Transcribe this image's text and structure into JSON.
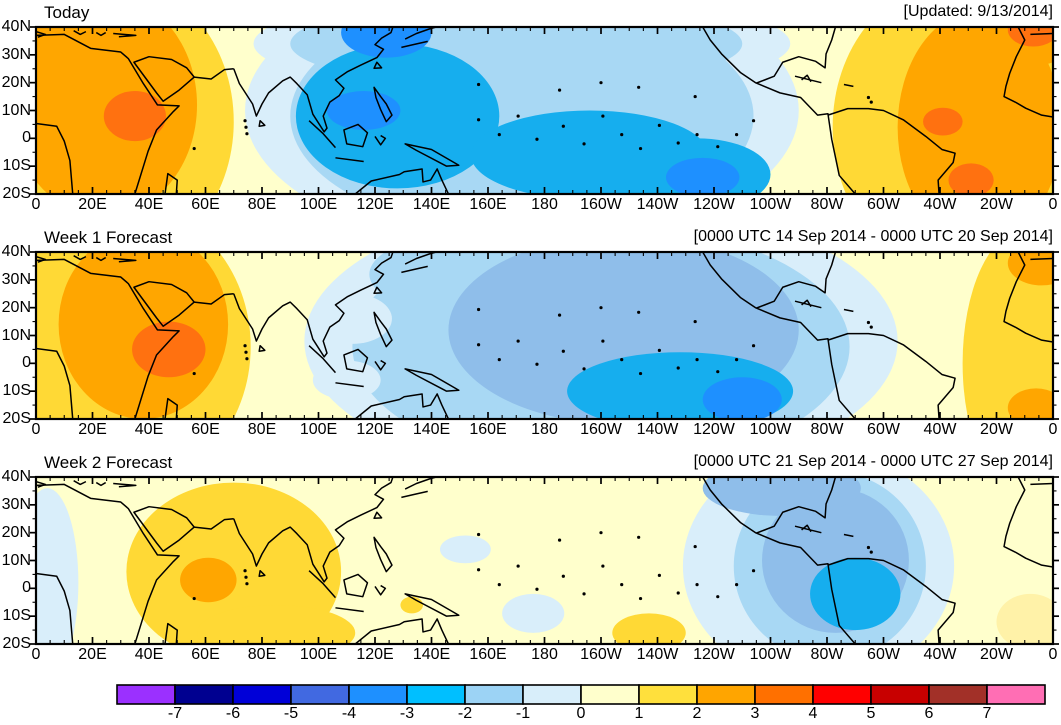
{
  "page": {
    "background": "#FFFFFF"
  },
  "panels": [
    {
      "title": "Today",
      "date_label": "[Updated: 9/13/2014]"
    },
    {
      "title": "Week 1 Forecast",
      "date_label": "[0000 UTC 14 Sep 2014 - 0000 UTC 20 Sep 2014]"
    },
    {
      "title": "Week 2 Forecast",
      "date_label": "[0000 UTC 21 Sep 2014 - 0000 UTC 27 Sep 2014]"
    }
  ],
  "axes": {
    "x_tick_labels": [
      "0",
      "20E",
      "40E",
      "60E",
      "80E",
      "100E",
      "120E",
      "140E",
      "160E",
      "180",
      "160W",
      "140W",
      "120W",
      "100W",
      "80W",
      "60W",
      "40W",
      "20W",
      "0"
    ],
    "x_tick_lons": [
      0,
      20,
      40,
      60,
      80,
      100,
      120,
      140,
      160,
      180,
      200,
      220,
      240,
      260,
      280,
      300,
      320,
      340,
      360
    ],
    "y_tick_labels": [
      "40N",
      "30N",
      "20N",
      "10N",
      "0",
      "10S",
      "20S"
    ],
    "y_tick_lats": [
      40,
      30,
      20,
      10,
      0,
      -10,
      -20
    ],
    "lon_range": [
      0,
      360
    ],
    "lat_range": [
      -20,
      40
    ],
    "minor_tick_deg": 5
  },
  "colorbar": {
    "labels": [
      "-7",
      "-6",
      "-5",
      "-4",
      "-3",
      "-2",
      "-1",
      "0",
      "1",
      "2",
      "3",
      "4",
      "5",
      "6",
      "7"
    ],
    "colors": [
      "#9B30FF",
      "#000090",
      "#0000D8",
      "#4169E1",
      "#1E90FF",
      "#00BFFF",
      "#9CD3F5",
      "#D8EEFA",
      "#FFFFCC",
      "#FFE03C",
      "#FFA500",
      "#FF7000",
      "#FF0000",
      "#C80000",
      "#A23028",
      "#FF6EB4"
    ]
  },
  "chart_data": {
    "type": "heatmap",
    "subtype": "filled-contour anomaly world maps, 3 stacked panels",
    "lon_domain": [
      0,
      360
    ],
    "lat_domain": [
      -20,
      40
    ],
    "contour_levels": [
      -7,
      -6,
      -5,
      -4,
      -3,
      -2,
      -1,
      0,
      1,
      2,
      3,
      4,
      5,
      6,
      7
    ],
    "base_color": "#FFFFCC",
    "palette": {
      "-4": "#1E90FF",
      "-3": "#16AEEE",
      "-2": "#A8D8F4",
      "-2m": "#8FBEEA",
      "-1": "#D9EEFA",
      "1": "#FFD935",
      "2": "#FFA600",
      "3": "#FF7110",
      "py": "#FFF2A8"
    },
    "palette_note": "keys are lower bounds of anomaly bands; -2m is the muted mid-blue shade, py the pale-yellow shade seen on the maps",
    "panels": [
      {
        "title": "Today",
        "period": "Updated 9/13/2014",
        "regions": [
          {
            "level": "-1",
            "lon": 172,
            "lat": 10,
            "rlon": 98,
            "rlat": 50
          },
          {
            "level": "-1",
            "lon": 172,
            "lat": 34,
            "rlon": 95,
            "rlat": 18
          },
          {
            "level": "-2",
            "lon": 172,
            "lat": 8,
            "rlon": 82,
            "rlat": 42
          },
          {
            "level": "-2",
            "lon": 170,
            "lat": 34,
            "rlon": 80,
            "rlat": 16
          },
          {
            "level": "-3",
            "lon": 128,
            "lat": 8,
            "rlon": 36,
            "rlat": 26
          },
          {
            "level": "-3",
            "lon": 196,
            "lat": -6,
            "rlon": 42,
            "rlat": 16
          },
          {
            "level": "-3",
            "lon": 234,
            "lat": -13,
            "rlon": 26,
            "rlat": 13
          },
          {
            "level": "-4",
            "lon": 116,
            "lat": 10,
            "rlon": 13,
            "rlat": 7
          },
          {
            "level": "-4",
            "lon": 124,
            "lat": 38,
            "rlon": 16,
            "rlat": 9
          },
          {
            "level": "-4",
            "lon": 236,
            "lat": -14,
            "rlon": 13,
            "rlat": 7
          },
          {
            "level": "1",
            "lon": 26,
            "lat": 6,
            "rlon": 44,
            "rlat": 52
          },
          {
            "level": "2",
            "lon": 24,
            "lat": 12,
            "rlon": 33,
            "rlat": 40
          },
          {
            "level": "3",
            "lon": 35,
            "lat": 8,
            "rlon": 11,
            "rlat": 9
          },
          {
            "level": "1",
            "lon": 324,
            "lat": 4,
            "rlon": 42,
            "rlat": 52
          },
          {
            "level": "2",
            "lon": 334,
            "lat": 4,
            "rlon": 29,
            "rlat": 42
          },
          {
            "level": "2",
            "lon": 352,
            "lat": 36,
            "rlon": 16,
            "rlat": 10
          },
          {
            "level": "3",
            "lon": 353,
            "lat": 39,
            "rlon": 9,
            "rlat": 6
          },
          {
            "level": "3",
            "lon": 321,
            "lat": 6,
            "rlon": 7,
            "rlat": 5
          },
          {
            "level": "3",
            "lon": 331,
            "lat": -15,
            "rlon": 8,
            "rlat": 6
          }
        ]
      },
      {
        "title": "Week 1 Forecast",
        "period": "0000 UTC 14 Sep 2014 - 0000 UTC 20 Sep 2014",
        "regions": [
          {
            "level": "-1",
            "lon": 200,
            "lat": 8,
            "rlon": 105,
            "rlat": 50
          },
          {
            "level": "-2",
            "lon": 200,
            "lat": 6,
            "rlon": 88,
            "rlat": 44
          },
          {
            "level": "-2",
            "lon": 160,
            "lat": 32,
            "rlon": 42,
            "rlat": 16
          },
          {
            "level": "-2m",
            "lon": 208,
            "lat": 12,
            "rlon": 62,
            "rlat": 34
          },
          {
            "level": "-1",
            "lon": 112,
            "lat": 16,
            "rlon": 14,
            "rlat": 9
          },
          {
            "level": "-1",
            "lon": 110,
            "lat": -6,
            "rlon": 12,
            "rlat": 7
          },
          {
            "level": "-3",
            "lon": 228,
            "lat": -10,
            "rlon": 40,
            "rlat": 14
          },
          {
            "level": "-4",
            "lon": 250,
            "lat": -13,
            "rlon": 14,
            "rlat": 8
          },
          {
            "level": "1",
            "lon": 30,
            "lat": 6,
            "rlon": 46,
            "rlat": 52
          },
          {
            "level": "2",
            "lon": 38,
            "lat": 14,
            "rlon": 30,
            "rlat": 34
          },
          {
            "level": "3",
            "lon": 47,
            "lat": 5,
            "rlon": 13,
            "rlat": 10
          },
          {
            "level": "1",
            "lon": 350,
            "lat": 0,
            "rlon": 22,
            "rlat": 48
          },
          {
            "level": "2",
            "lon": 354,
            "lat": -16,
            "rlon": 10,
            "rlat": 7
          },
          {
            "level": "2",
            "lon": 356,
            "lat": 36,
            "rlon": 12,
            "rlat": 8
          }
        ]
      },
      {
        "title": "Week 2 Forecast",
        "period": "0000 UTC 21 Sep 2014 - 0000 UTC 27 Sep 2014",
        "regions": [
          {
            "level": "-1",
            "lon": 4,
            "lat": 2,
            "rlon": 11,
            "rlat": 34
          },
          {
            "level": "1",
            "lon": 70,
            "lat": 6,
            "rlon": 38,
            "rlat": 32
          },
          {
            "level": "1",
            "lon": 85,
            "lat": -16,
            "rlon": 28,
            "rlat": 10
          },
          {
            "level": "2",
            "lon": 61,
            "lat": 3,
            "rlon": 10,
            "rlat": 8
          },
          {
            "level": "1",
            "lon": 133,
            "lat": -6,
            "rlon": 4,
            "rlat": 3
          },
          {
            "level": "-1",
            "lon": 152,
            "lat": 14,
            "rlon": 9,
            "rlat": 5
          },
          {
            "level": "-1",
            "lon": 176,
            "lat": -9,
            "rlon": 11,
            "rlat": 7
          },
          {
            "level": "1",
            "lon": 217,
            "lat": -16,
            "rlon": 13,
            "rlat": 7
          },
          {
            "level": "-1",
            "lon": 277,
            "lat": 8,
            "rlon": 48,
            "rlat": 42
          },
          {
            "level": "-2",
            "lon": 281,
            "lat": 8,
            "rlon": 34,
            "rlat": 34
          },
          {
            "level": "-2m",
            "lon": 283,
            "lat": 10,
            "rlon": 26,
            "rlat": 26
          },
          {
            "level": "-2m",
            "lon": 264,
            "lat": 36,
            "rlon": 28,
            "rlat": 10
          },
          {
            "level": "-3",
            "lon": 290,
            "lat": -2,
            "rlon": 16,
            "rlat": 13
          },
          {
            "level": "py",
            "lon": 352,
            "lat": -12,
            "rlon": 12,
            "rlat": 10
          }
        ]
      }
    ]
  }
}
